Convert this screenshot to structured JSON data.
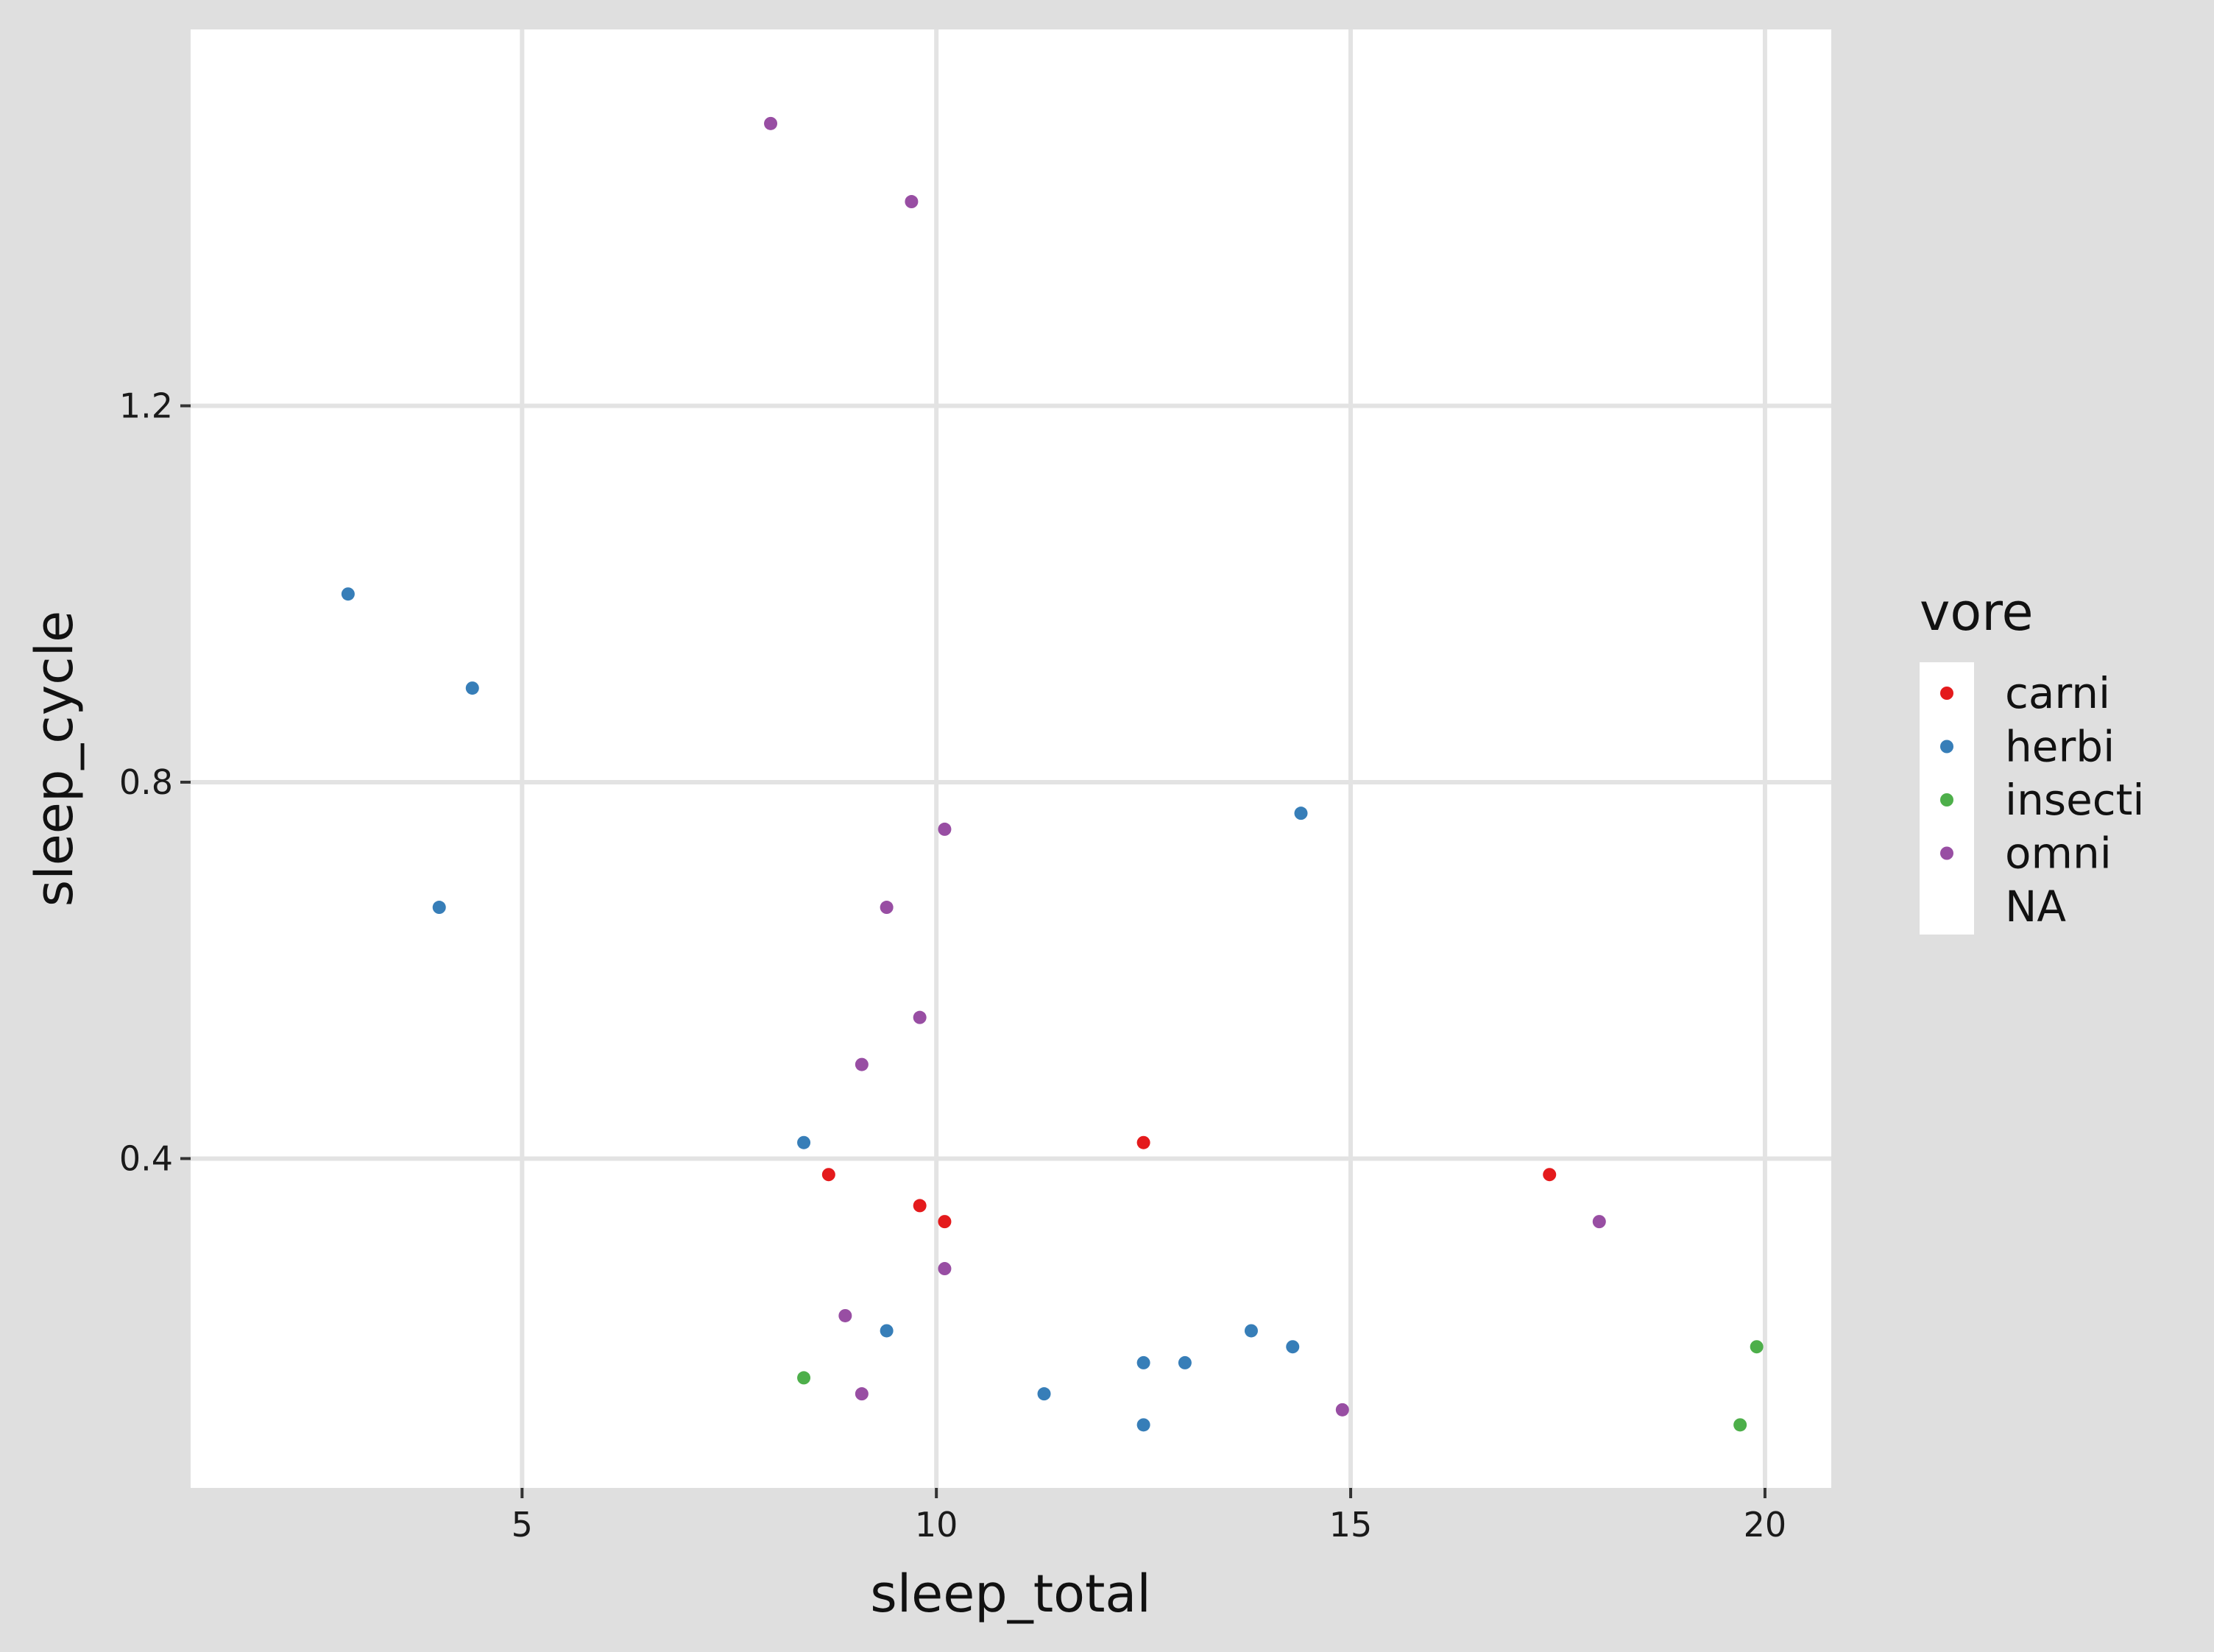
{
  "chart_data": {
    "type": "scatter",
    "title": "",
    "xlabel": "sleep_total",
    "ylabel": "sleep_cycle",
    "xlim": [
      1.0,
      20.8
    ],
    "ylim": [
      0.05,
      1.6
    ],
    "x_ticks": [
      5,
      10,
      15,
      20
    ],
    "y_ticks": [
      0.4,
      0.8,
      1.2
    ],
    "x_tick_labels": [
      "5",
      "10",
      "15",
      "20"
    ],
    "y_tick_labels": [
      "0.4",
      "0.8",
      "1.2"
    ],
    "grid": true,
    "background": "#dfdfdf",
    "panel_background": "#ffffff",
    "gridline_color": "#e3e3e3",
    "legend": {
      "title": "vore",
      "position": "right",
      "entries": [
        {
          "label": "carni",
          "color": "#e41a1c"
        },
        {
          "label": "herbi",
          "color": "#377eb8"
        },
        {
          "label": "insecti",
          "color": "#4daf4a"
        },
        {
          "label": "omni",
          "color": "#984ea3"
        },
        {
          "label": "NA",
          "color": ""
        }
      ]
    },
    "series": [
      {
        "name": "carni",
        "color": "#e41a1c",
        "points": [
          {
            "x": 8.7,
            "y": 0.383
          },
          {
            "x": 9.8,
            "y": 0.35
          },
          {
            "x": 10.1,
            "y": 0.333
          },
          {
            "x": 12.5,
            "y": 0.417
          },
          {
            "x": 17.4,
            "y": 0.383
          }
        ]
      },
      {
        "name": "herbi",
        "color": "#377eb8",
        "points": [
          {
            "x": 2.9,
            "y": 1.0
          },
          {
            "x": 4.4,
            "y": 0.9
          },
          {
            "x": 4.0,
            "y": 0.667
          },
          {
            "x": 8.4,
            "y": 0.417
          },
          {
            "x": 9.4,
            "y": 0.217
          },
          {
            "x": 11.3,
            "y": 0.15
          },
          {
            "x": 12.5,
            "y": 0.183
          },
          {
            "x": 12.5,
            "y": 0.117
          },
          {
            "x": 13.0,
            "y": 0.183
          },
          {
            "x": 13.8,
            "y": 0.217
          },
          {
            "x": 14.3,
            "y": 0.2
          },
          {
            "x": 14.4,
            "y": 0.767
          }
        ]
      },
      {
        "name": "insecti",
        "color": "#4daf4a",
        "points": [
          {
            "x": 8.4,
            "y": 0.167
          },
          {
            "x": 19.7,
            "y": 0.117
          },
          {
            "x": 19.9,
            "y": 0.2
          }
        ]
      },
      {
        "name": "omni",
        "color": "#984ea3",
        "points": [
          {
            "x": 8.0,
            "y": 1.5
          },
          {
            "x": 9.7,
            "y": 1.417
          },
          {
            "x": 10.1,
            "y": 0.75
          },
          {
            "x": 9.4,
            "y": 0.667
          },
          {
            "x": 9.8,
            "y": 0.55
          },
          {
            "x": 9.1,
            "y": 0.5
          },
          {
            "x": 10.1,
            "y": 0.283
          },
          {
            "x": 8.9,
            "y": 0.233
          },
          {
            "x": 9.1,
            "y": 0.15
          },
          {
            "x": 14.9,
            "y": 0.133
          },
          {
            "x": 18.0,
            "y": 0.333
          }
        ]
      }
    ]
  }
}
